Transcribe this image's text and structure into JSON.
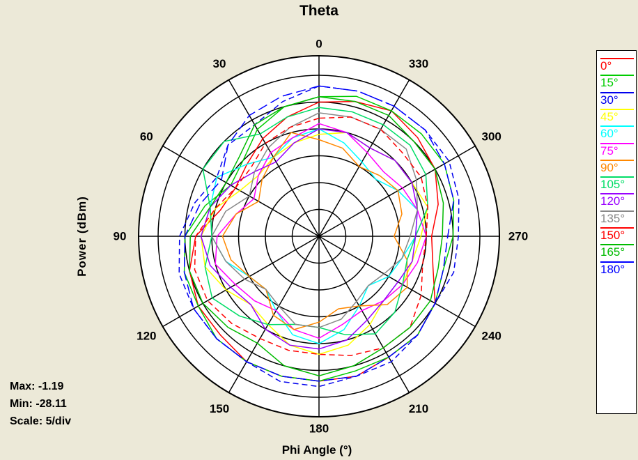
{
  "chart_data": {
    "type": "polar-line",
    "title": "Theta",
    "xlabel": "Phi Angle  (°)",
    "ylabel": "Power  (dBm)",
    "angle_labels": [
      "0",
      "330",
      "300",
      "270",
      "240",
      "210",
      "180",
      "150",
      "120",
      "90",
      "60",
      "30"
    ],
    "angle_direction": "counterclockwise, 0 at top",
    "radial_range": [
      -30,
      0
    ],
    "radial_divisions": 6,
    "stats": {
      "max": "Max: -1.19",
      "min": "Min: -28.11",
      "scale": "Scale: 5/div"
    },
    "phi": [
      0,
      15,
      30,
      45,
      60,
      75,
      90,
      105,
      120,
      135,
      150,
      165,
      180,
      195,
      210,
      225,
      240,
      255,
      270,
      285,
      300,
      315,
      330,
      345
    ],
    "series": [
      {
        "name": "0°",
        "color": "#ff0000",
        "dash": "none",
        "values": [
          -5,
          -7,
          -9,
          -11,
          -12,
          -11,
          -7,
          -5,
          -4,
          -4,
          -3,
          -3,
          -3,
          -3,
          -4,
          -4,
          -5,
          -8,
          -9,
          -7,
          -5,
          -4,
          -3,
          -4
        ]
      },
      {
        "name": "15°",
        "color": "#00cc00",
        "dash": "none",
        "values": [
          -4,
          -5,
          -7,
          -10,
          -11,
          -8,
          -5,
          -4,
          -4,
          -3,
          -3,
          -3,
          -3,
          -4,
          -4,
          -4,
          -5,
          -6,
          -5,
          -4,
          -3,
          -3,
          -3,
          -3
        ]
      },
      {
        "name": "30°",
        "color": "#0000ee",
        "dash": "8,5",
        "values": [
          -2,
          -4,
          -6,
          -6,
          -8,
          -6,
          -4,
          -3,
          -3,
          -3,
          -3,
          -2,
          -2,
          -3,
          -3,
          -4,
          -5,
          -4,
          -4,
          -3,
          -2,
          -2,
          -2,
          -2
        ]
      },
      {
        "name": "45°",
        "color": "#ffff00",
        "dash": "none",
        "values": [
          -11,
          -12,
          -13,
          -14,
          -13,
          -10,
          -8,
          -8,
          -10,
          -12,
          -11,
          -9,
          -8,
          -9,
          -11,
          -13,
          -12,
          -12,
          -11,
          -9,
          -10,
          -10,
          -11,
          -10
        ]
      },
      {
        "name": "60°",
        "color": "#00ffff",
        "dash": "none",
        "values": [
          -10,
          -11,
          -13,
          -11,
          -8,
          -9,
          -10,
          -12,
          -15,
          -16,
          -14,
          -11,
          -10,
          -12,
          -15,
          -17,
          -15,
          -14,
          -12,
          -11,
          -13,
          -15,
          -14,
          -12
        ]
      },
      {
        "name": "75°",
        "color": "#ff00ff",
        "dash": "none",
        "values": [
          -9,
          -11,
          -12,
          -14,
          -16,
          -14,
          -11,
          -10,
          -12,
          -13,
          -14,
          -12,
          -11,
          -13,
          -14,
          -13,
          -12,
          -11,
          -10,
          -11,
          -12,
          -13,
          -12,
          -10
        ]
      },
      {
        "name": "90°",
        "color": "#ff8800",
        "dash": "none",
        "values": [
          -12,
          -10,
          -13,
          -15,
          -17,
          -14,
          -12,
          -13,
          -15,
          -16,
          -13,
          -12,
          -14,
          -16,
          -15,
          -12,
          -11,
          -13,
          -16,
          -14,
          -13,
          -14,
          -15,
          -13
        ]
      },
      {
        "name": "105°",
        "color": "#00dd66",
        "dash": "none",
        "values": [
          -6,
          -7,
          -8,
          -5,
          -5,
          -9,
          -10,
          -8,
          -7,
          -9,
          -11,
          -13,
          -13,
          -11,
          -9,
          -10,
          -12,
          -13,
          -12,
          -9,
          -7,
          -6,
          -6,
          -6
        ]
      },
      {
        "name": "120°",
        "color": "#9900ff",
        "dash": "none",
        "values": [
          -10,
          -12,
          -14,
          -13,
          -11,
          -9,
          -8,
          -9,
          -11,
          -12,
          -10,
          -9,
          -9,
          -10,
          -12,
          -13,
          -13,
          -12,
          -12,
          -11,
          -10,
          -10,
          -11,
          -10
        ]
      },
      {
        "name": "135°",
        "color": "#888888",
        "dash": "none",
        "values": [
          -7,
          -9,
          -11,
          -13,
          -15,
          -12,
          -10,
          -12,
          -14,
          -16,
          -15,
          -13,
          -13,
          -14,
          -16,
          -17,
          -16,
          -14,
          -13,
          -11,
          -9,
          -7,
          -7,
          -7
        ]
      },
      {
        "name": "150°",
        "color": "#ff0000",
        "dash": "8,5",
        "values": [
          -8,
          -9,
          -10,
          -12,
          -12,
          -10,
          -7,
          -6,
          -6,
          -7,
          -8,
          -8,
          -8,
          -7,
          -6,
          -6,
          -8,
          -10,
          -10,
          -9,
          -8,
          -8,
          -7,
          -7
        ]
      },
      {
        "name": "165°",
        "color": "#00bb00",
        "dash": "none",
        "values": [
          -4,
          -5,
          -6,
          -9,
          -10,
          -9,
          -6,
          -5,
          -5,
          -6,
          -7,
          -5,
          -4,
          -5,
          -6,
          -6,
          -6,
          -7,
          -7,
          -6,
          -5,
          -5,
          -4,
          -4
        ]
      },
      {
        "name": "180°",
        "color": "#0000ff",
        "dash": "14,6",
        "values": [
          -2,
          -3,
          -4,
          -6,
          -9,
          -7,
          -5,
          -4,
          -3,
          -3,
          -3,
          -3,
          -3,
          -3,
          -4,
          -4,
          -5,
          -6,
          -6,
          -4,
          -3,
          -2,
          -2,
          -2
        ]
      }
    ]
  }
}
